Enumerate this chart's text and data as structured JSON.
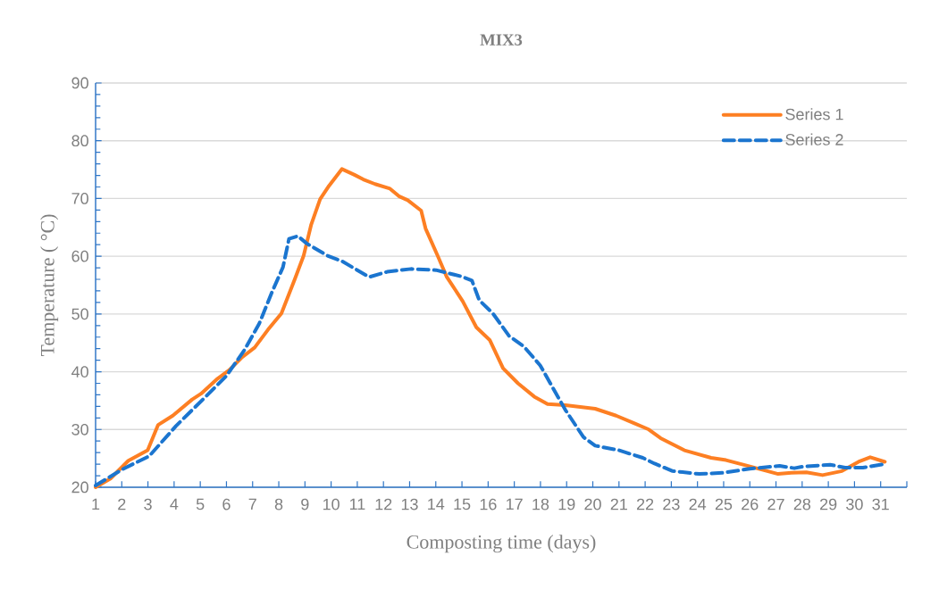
{
  "chart_data": {
    "type": "line",
    "title": "MIX3",
    "xlabel": "Composting time (days)",
    "ylabel": "Temperature ( °C)",
    "xlim": [
      1,
      32
    ],
    "xticks": [
      1,
      2,
      3,
      4,
      5,
      6,
      7,
      8,
      9,
      10,
      11,
      12,
      13,
      14,
      15,
      16,
      17,
      18,
      19,
      20,
      21,
      22,
      23,
      24,
      25,
      26,
      27,
      28,
      29,
      30,
      31,
      {
        "value": 32,
        "label": null
      }
    ],
    "ylim": [
      20,
      90
    ],
    "yticks": [
      20,
      30,
      40,
      50,
      60,
      70,
      80,
      90
    ],
    "grid": "y",
    "legend": "top right",
    "series": [
      {
        "name": "Series 1",
        "color": "#fd7f23",
        "line_style": "solid",
        "x": [
          1,
          1.57,
          2.25,
          2.99,
          3.39,
          3.95,
          4.69,
          5.03,
          5.66,
          6.11,
          6.57,
          7.08,
          7.59,
          8.1,
          8.61,
          8.95,
          9.24,
          9.58,
          9.92,
          10.41,
          10.89,
          11.23,
          11.68,
          12.25,
          12.59,
          12.93,
          13.44,
          13.61,
          14.07,
          14.41,
          15.03,
          15.55,
          16.06,
          16.57,
          17.14,
          17.76,
          18.27,
          18.95,
          20.09,
          20.89,
          21.57,
          22.14,
          22.59,
          23.5,
          24.52,
          25.09,
          26.0,
          27.08,
          27.59,
          28.16,
          28.78,
          29.52,
          30.2,
          30.6,
          31.16
        ],
        "values": [
          20,
          21.5,
          24.6,
          26.4,
          30.8,
          32.4,
          35.2,
          36.2,
          38.8,
          40.3,
          42.4,
          44.2,
          47.3,
          50.1,
          56,
          60.1,
          65.5,
          69.9,
          72.2,
          75.1,
          74.1,
          73.3,
          72.5,
          71.7,
          70.4,
          69.7,
          67.9,
          64.8,
          60.1,
          56.5,
          52.2,
          47.7,
          45.5,
          40.6,
          38,
          35.7,
          34.4,
          34.2,
          33.6,
          32.4,
          31.1,
          30.0,
          28.5,
          26.4,
          25.1,
          24.7,
          23.6,
          22.3,
          22.5,
          22.6,
          22.1,
          22.8,
          24.5,
          25.2,
          24.4
        ]
      },
      {
        "name": "Series 2",
        "color": "#1b75cf",
        "line_style": "dashed",
        "x": [
          1,
          2.02,
          3.05,
          4.07,
          5.32,
          6.0,
          6.68,
          7.25,
          7.76,
          8.16,
          8.39,
          8.73,
          9.07,
          9.86,
          10.43,
          11.0,
          11.45,
          12.14,
          13.05,
          14.01,
          14.98,
          15.38,
          15.66,
          16.18,
          16.8,
          17.36,
          17.99,
          18.5,
          18.95,
          19.64,
          20.09,
          21.0,
          21.91,
          22.36,
          23.05,
          24.07,
          24.98,
          26.0,
          27.14,
          27.7,
          28.05,
          29.07,
          29.64,
          30.32,
          31.11
        ],
        "values": [
          20.3,
          23.1,
          25.4,
          30.6,
          36.2,
          39.3,
          43.7,
          48.3,
          54.0,
          58.1,
          63.0,
          63.5,
          62.2,
          60.1,
          59.1,
          57.6,
          56.4,
          57.3,
          57.8,
          57.6,
          56.5,
          55.8,
          52.4,
          50.1,
          46.2,
          44.4,
          41.1,
          37.0,
          33.4,
          28.7,
          27.2,
          26.4,
          25.1,
          24.1,
          22.8,
          22.3,
          22.5,
          23.2,
          23.7,
          23.3,
          23.6,
          23.9,
          23.4,
          23.4,
          24.0
        ]
      }
    ]
  }
}
